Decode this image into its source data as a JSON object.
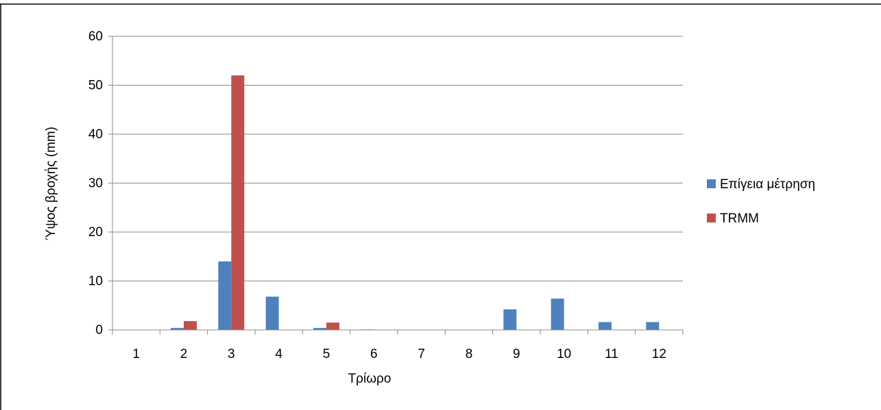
{
  "chart_data": {
    "type": "bar",
    "title": "",
    "xlabel": "Τρίωρο",
    "ylabel": "Ύψος βροχής (mm)",
    "ylim": [
      0,
      60
    ],
    "yticks": [
      0,
      10,
      20,
      30,
      40,
      50,
      60
    ],
    "grid": true,
    "legend_position": "right",
    "categories": [
      "1",
      "2",
      "3",
      "4",
      "5",
      "6",
      "7",
      "8",
      "9",
      "10",
      "11",
      "12"
    ],
    "series": [
      {
        "name": "Επίγεια μέτρηση",
        "color": "#4F81BD",
        "values": [
          0,
          0.4,
          14,
          6.8,
          0.4,
          0.1,
          0,
          0,
          4.2,
          6.4,
          1.6,
          1.6
        ]
      },
      {
        "name": "TRMM",
        "color": "#C0504D",
        "values": [
          0,
          1.8,
          52,
          0,
          1.5,
          0,
          0,
          0,
          0,
          0,
          0,
          0
        ]
      }
    ]
  }
}
